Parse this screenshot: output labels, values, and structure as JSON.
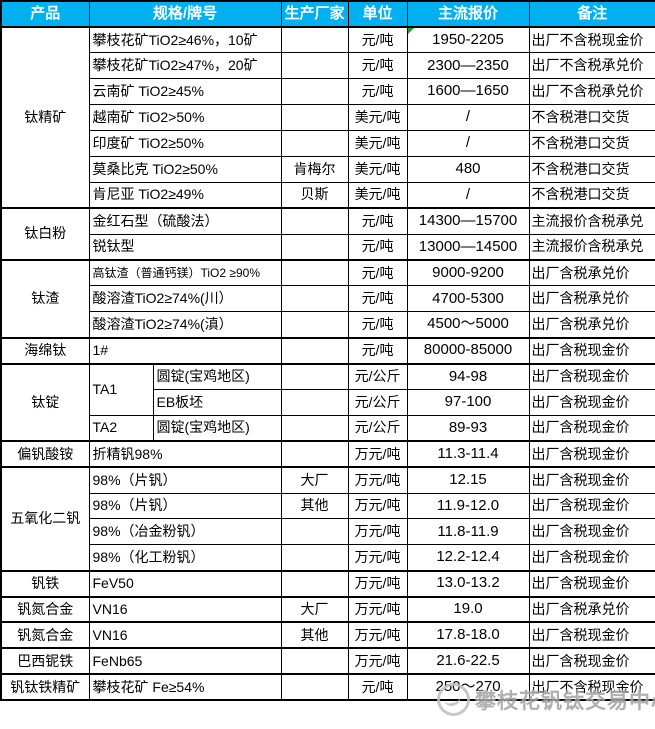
{
  "colors": {
    "header_bg": "#00B0F0",
    "header_text": "#FFFFFF",
    "border": "#000000",
    "flag_green": "#1CA32C",
    "watermark_gray": "#A3A3A3"
  },
  "watermark": {
    "text": "攀枝花钒钛交易中心"
  },
  "table": {
    "columns": [
      "产品",
      "规格/牌号",
      "生产厂家",
      "单位",
      "主流报价",
      "备注"
    ],
    "rows": [
      {
        "group": true,
        "cells": [
          {
            "name": "product-cell",
            "text": "钛精矿",
            "rowspan": 7,
            "cls": "product"
          },
          {
            "name": "spec-cell",
            "text": "攀枝花矿TiO2≥46%，10矿",
            "colspan": 2,
            "cls": "spec"
          },
          {
            "name": "maker-cell",
            "text": "",
            "cls": "center"
          },
          {
            "name": "unit-cell",
            "text": "元/吨",
            "cls": "center"
          },
          {
            "name": "price-cell",
            "text": "1950-2205",
            "cls": "price",
            "flag": true
          },
          {
            "name": "note-cell",
            "text": "出厂不含税现金价",
            "cls": "note"
          }
        ]
      },
      {
        "cells": [
          {
            "name": "spec-cell",
            "text": "攀枝花矿TiO2≥47%，20矿",
            "colspan": 2,
            "cls": "spec"
          },
          {
            "name": "maker-cell",
            "text": "",
            "cls": "center"
          },
          {
            "name": "unit-cell",
            "text": "元/吨",
            "cls": "center"
          },
          {
            "name": "price-cell",
            "text": "2300—2350",
            "cls": "price"
          },
          {
            "name": "note-cell",
            "text": "出厂不含税承兑价",
            "cls": "note"
          }
        ]
      },
      {
        "cells": [
          {
            "name": "spec-cell",
            "text": "云南矿 TiO2≥45%",
            "colspan": 2,
            "cls": "spec"
          },
          {
            "name": "maker-cell",
            "text": "",
            "cls": "center"
          },
          {
            "name": "unit-cell",
            "text": "元/吨",
            "cls": "center"
          },
          {
            "name": "price-cell",
            "text": "1600—1650",
            "cls": "price"
          },
          {
            "name": "note-cell",
            "text": "出厂不含税承兑价",
            "cls": "note"
          }
        ]
      },
      {
        "cells": [
          {
            "name": "spec-cell",
            "text": "越南矿 TiO2>50%",
            "colspan": 2,
            "cls": "spec"
          },
          {
            "name": "maker-cell",
            "text": "",
            "cls": "center"
          },
          {
            "name": "unit-cell",
            "text": "美元/吨",
            "cls": "center"
          },
          {
            "name": "price-cell",
            "text": "/",
            "cls": "price"
          },
          {
            "name": "note-cell",
            "text": "不含税港口交货",
            "cls": "note"
          }
        ]
      },
      {
        "cells": [
          {
            "name": "spec-cell",
            "text": "印度矿 TiO2≥50%",
            "colspan": 2,
            "cls": "spec"
          },
          {
            "name": "maker-cell",
            "text": "",
            "cls": "center"
          },
          {
            "name": "unit-cell",
            "text": "美元/吨",
            "cls": "center"
          },
          {
            "name": "price-cell",
            "text": "/",
            "cls": "price"
          },
          {
            "name": "note-cell",
            "text": "不含税港口交货",
            "cls": "note"
          }
        ]
      },
      {
        "cells": [
          {
            "name": "spec-cell",
            "text": "莫桑比克 TiO2≥50%",
            "colspan": 2,
            "cls": "spec"
          },
          {
            "name": "maker-cell",
            "text": "肯梅尔",
            "cls": "center"
          },
          {
            "name": "unit-cell",
            "text": "美元/吨",
            "cls": "center"
          },
          {
            "name": "price-cell",
            "text": "480",
            "cls": "price"
          },
          {
            "name": "note-cell",
            "text": "不含税港口交货",
            "cls": "note"
          }
        ]
      },
      {
        "cells": [
          {
            "name": "spec-cell",
            "text": "肯尼亚 TiO2≥49%",
            "colspan": 2,
            "cls": "spec"
          },
          {
            "name": "maker-cell",
            "text": "贝斯",
            "cls": "center"
          },
          {
            "name": "unit-cell",
            "text": "美元/吨",
            "cls": "center"
          },
          {
            "name": "price-cell",
            "text": "/",
            "cls": "price"
          },
          {
            "name": "note-cell",
            "text": "不含税港口交货",
            "cls": "note"
          }
        ]
      },
      {
        "group": true,
        "cells": [
          {
            "name": "product-cell",
            "text": "钛白粉",
            "rowspan": 2,
            "cls": "product"
          },
          {
            "name": "spec-cell",
            "text": "金红石型（硫酸法）",
            "colspan": 2,
            "cls": "spec"
          },
          {
            "name": "maker-cell",
            "text": "",
            "cls": "center"
          },
          {
            "name": "unit-cell",
            "text": "元/吨",
            "cls": "center"
          },
          {
            "name": "price-cell",
            "text": "14300—15700",
            "cls": "price"
          },
          {
            "name": "note-cell",
            "text": "主流报价含税承兑",
            "cls": "note"
          }
        ]
      },
      {
        "cells": [
          {
            "name": "spec-cell",
            "text": "锐钛型",
            "colspan": 2,
            "cls": "spec"
          },
          {
            "name": "maker-cell",
            "text": "",
            "cls": "center"
          },
          {
            "name": "unit-cell",
            "text": "元/吨",
            "cls": "center"
          },
          {
            "name": "price-cell",
            "text": "13000—14500",
            "cls": "price"
          },
          {
            "name": "note-cell",
            "text": "主流报价含税承兑",
            "cls": "note"
          }
        ]
      },
      {
        "group": true,
        "cells": [
          {
            "name": "product-cell",
            "text": "钛渣",
            "rowspan": 3,
            "cls": "product"
          },
          {
            "name": "spec-cell",
            "text": "高钛渣（普通钙镁）TiO2 ≥90%",
            "colspan": 2,
            "cls": "spec small"
          },
          {
            "name": "maker-cell",
            "text": "",
            "cls": "center"
          },
          {
            "name": "unit-cell",
            "text": "元/吨",
            "cls": "center"
          },
          {
            "name": "price-cell",
            "text": "9000-9200",
            "cls": "price"
          },
          {
            "name": "note-cell",
            "text": "出厂含税承兑价",
            "cls": "note"
          }
        ]
      },
      {
        "cells": [
          {
            "name": "spec-cell",
            "text": "酸溶渣TiO2≥74%(川）",
            "colspan": 2,
            "cls": "spec"
          },
          {
            "name": "maker-cell",
            "text": "",
            "cls": "center"
          },
          {
            "name": "unit-cell",
            "text": "元/吨",
            "cls": "center"
          },
          {
            "name": "price-cell",
            "text": "4700-5300",
            "cls": "price"
          },
          {
            "name": "note-cell",
            "text": "出厂含税承兑价",
            "cls": "note"
          }
        ]
      },
      {
        "cells": [
          {
            "name": "spec-cell",
            "text": "酸溶渣TiO2≥74%(滇）",
            "colspan": 2,
            "cls": "spec"
          },
          {
            "name": "maker-cell",
            "text": "",
            "cls": "center"
          },
          {
            "name": "unit-cell",
            "text": "元/吨",
            "cls": "center"
          },
          {
            "name": "price-cell",
            "text": "4500～5000",
            "cls": "price"
          },
          {
            "name": "note-cell",
            "text": "出厂含税承兑价",
            "cls": "note"
          }
        ]
      },
      {
        "group": true,
        "cells": [
          {
            "name": "product-cell",
            "text": "海绵钛",
            "cls": "product"
          },
          {
            "name": "spec-cell",
            "text": "1#",
            "colspan": 2,
            "cls": "spec"
          },
          {
            "name": "maker-cell",
            "text": "",
            "cls": "center"
          },
          {
            "name": "unit-cell",
            "text": "元/吨",
            "cls": "center"
          },
          {
            "name": "price-cell",
            "text": "80000-85000",
            "cls": "price"
          },
          {
            "name": "note-cell",
            "text": "出厂含税现金价",
            "cls": "note"
          }
        ]
      },
      {
        "group": true,
        "cells": [
          {
            "name": "product-cell",
            "text": "钛锭",
            "rowspan": 3,
            "cls": "product"
          },
          {
            "name": "spec-grade-cell",
            "text": "TA1",
            "rowspan": 2,
            "cls": "spec"
          },
          {
            "name": "spec-form-cell",
            "text": "圆锭(宝鸡地区)",
            "cls": "spec"
          },
          {
            "name": "maker-cell",
            "text": "",
            "cls": "center"
          },
          {
            "name": "unit-cell",
            "text": "元/公斤",
            "cls": "center"
          },
          {
            "name": "price-cell",
            "text": "94-98",
            "cls": "price"
          },
          {
            "name": "note-cell",
            "text": "出厂含税现金价",
            "cls": "note"
          }
        ]
      },
      {
        "cells": [
          {
            "name": "spec-form-cell",
            "text": "EB板坯",
            "cls": "spec"
          },
          {
            "name": "maker-cell",
            "text": "",
            "cls": "center"
          },
          {
            "name": "unit-cell",
            "text": "元/公斤",
            "cls": "center"
          },
          {
            "name": "price-cell",
            "text": "97-100",
            "cls": "price"
          },
          {
            "name": "note-cell",
            "text": "出厂含税现金价",
            "cls": "note"
          }
        ]
      },
      {
        "cells": [
          {
            "name": "spec-grade-cell",
            "text": "TA2",
            "cls": "spec"
          },
          {
            "name": "spec-form-cell",
            "text": "圆锭(宝鸡地区)",
            "cls": "spec"
          },
          {
            "name": "maker-cell",
            "text": "",
            "cls": "center"
          },
          {
            "name": "unit-cell",
            "text": "元/公斤",
            "cls": "center"
          },
          {
            "name": "price-cell",
            "text": "89-93",
            "cls": "price"
          },
          {
            "name": "note-cell",
            "text": "出厂含税现金价",
            "cls": "note"
          }
        ]
      },
      {
        "group": true,
        "cells": [
          {
            "name": "product-cell",
            "text": "偏钒酸铵",
            "cls": "product"
          },
          {
            "name": "spec-cell",
            "text": "折精钒98%",
            "colspan": 2,
            "cls": "spec"
          },
          {
            "name": "maker-cell",
            "text": "",
            "cls": "center"
          },
          {
            "name": "unit-cell",
            "text": "万元/吨",
            "cls": "center"
          },
          {
            "name": "price-cell",
            "text": "11.3-11.4",
            "cls": "price"
          },
          {
            "name": "note-cell",
            "text": "出厂含税现金价",
            "cls": "note"
          }
        ]
      },
      {
        "group": true,
        "cells": [
          {
            "name": "product-cell",
            "text": "五氧化二钒",
            "rowspan": 4,
            "cls": "product"
          },
          {
            "name": "spec-cell",
            "text": "98%（片钒）",
            "colspan": 2,
            "cls": "spec"
          },
          {
            "name": "maker-cell",
            "text": "大厂",
            "cls": "center"
          },
          {
            "name": "unit-cell",
            "text": "万元/吨",
            "cls": "center"
          },
          {
            "name": "price-cell",
            "text": "12.15",
            "cls": "price"
          },
          {
            "name": "note-cell",
            "text": "出厂含税现金价",
            "cls": "note"
          }
        ]
      },
      {
        "cells": [
          {
            "name": "spec-cell",
            "text": "98%（片钒）",
            "colspan": 2,
            "cls": "spec"
          },
          {
            "name": "maker-cell",
            "text": "其他",
            "cls": "center"
          },
          {
            "name": "unit-cell",
            "text": "万元/吨",
            "cls": "center"
          },
          {
            "name": "price-cell",
            "text": "11.9-12.0",
            "cls": "price"
          },
          {
            "name": "note-cell",
            "text": "出厂含税现金价",
            "cls": "note"
          }
        ]
      },
      {
        "cells": [
          {
            "name": "spec-cell",
            "text": "98%（冶金粉钒）",
            "colspan": 2,
            "cls": "spec"
          },
          {
            "name": "maker-cell",
            "text": "",
            "cls": "center"
          },
          {
            "name": "unit-cell",
            "text": "万元/吨",
            "cls": "center"
          },
          {
            "name": "price-cell",
            "text": "11.8-11.9",
            "cls": "price"
          },
          {
            "name": "note-cell",
            "text": "出厂含税现金价",
            "cls": "note"
          }
        ]
      },
      {
        "cells": [
          {
            "name": "spec-cell",
            "text": "98%（化工粉钒）",
            "colspan": 2,
            "cls": "spec"
          },
          {
            "name": "maker-cell",
            "text": "",
            "cls": "center"
          },
          {
            "name": "unit-cell",
            "text": "万元/吨",
            "cls": "center"
          },
          {
            "name": "price-cell",
            "text": "12.2-12.4",
            "cls": "price"
          },
          {
            "name": "note-cell",
            "text": "出厂含税现金价",
            "cls": "note"
          }
        ]
      },
      {
        "group": true,
        "cells": [
          {
            "name": "product-cell",
            "text": "钒铁",
            "cls": "product"
          },
          {
            "name": "spec-cell",
            "text": "FeV50",
            "colspan": 2,
            "cls": "spec"
          },
          {
            "name": "maker-cell",
            "text": "",
            "cls": "center"
          },
          {
            "name": "unit-cell",
            "text": "万元/吨",
            "cls": "center"
          },
          {
            "name": "price-cell",
            "text": "13.0-13.2",
            "cls": "price"
          },
          {
            "name": "note-cell",
            "text": "出厂含税现金价",
            "cls": "note"
          }
        ]
      },
      {
        "group": true,
        "cells": [
          {
            "name": "product-cell",
            "text": "钒氮合金",
            "cls": "product"
          },
          {
            "name": "spec-cell",
            "text": "VN16",
            "colspan": 2,
            "cls": "spec"
          },
          {
            "name": "maker-cell",
            "text": "大厂",
            "cls": "center"
          },
          {
            "name": "unit-cell",
            "text": "万元/吨",
            "cls": "center"
          },
          {
            "name": "price-cell",
            "text": "19.0",
            "cls": "price"
          },
          {
            "name": "note-cell",
            "text": "出厂含税承兑价",
            "cls": "note"
          }
        ]
      },
      {
        "group": true,
        "cells": [
          {
            "name": "product-cell",
            "text": "钒氮合金",
            "cls": "product"
          },
          {
            "name": "spec-cell",
            "text": "VN16",
            "colspan": 2,
            "cls": "spec"
          },
          {
            "name": "maker-cell",
            "text": "其他",
            "cls": "center"
          },
          {
            "name": "unit-cell",
            "text": "万元/吨",
            "cls": "center"
          },
          {
            "name": "price-cell",
            "text": "17.8-18.0",
            "cls": "price"
          },
          {
            "name": "note-cell",
            "text": "出厂含税现金价",
            "cls": "note"
          }
        ]
      },
      {
        "group": true,
        "cells": [
          {
            "name": "product-cell",
            "text": "巴西铌铁",
            "cls": "product"
          },
          {
            "name": "spec-cell",
            "text": "FeNb65",
            "colspan": 2,
            "cls": "spec"
          },
          {
            "name": "maker-cell",
            "text": "",
            "cls": "center"
          },
          {
            "name": "unit-cell",
            "text": "万元/吨",
            "cls": "center"
          },
          {
            "name": "price-cell",
            "text": "21.6-22.5",
            "cls": "price"
          },
          {
            "name": "note-cell",
            "text": "出厂含税现金价",
            "cls": "note"
          }
        ]
      },
      {
        "group": true,
        "cells": [
          {
            "name": "product-cell",
            "text": "钒钛铁精矿",
            "cls": "product"
          },
          {
            "name": "spec-cell",
            "text": "攀枝花矿 Fe≥54%",
            "colspan": 2,
            "cls": "spec"
          },
          {
            "name": "maker-cell",
            "text": "",
            "cls": "center"
          },
          {
            "name": "unit-cell",
            "text": "元/吨",
            "cls": "center"
          },
          {
            "name": "price-cell",
            "text": "250～270",
            "cls": "price"
          },
          {
            "name": "note-cell",
            "text": "出厂不含税现金价",
            "cls": "note"
          }
        ]
      }
    ]
  }
}
